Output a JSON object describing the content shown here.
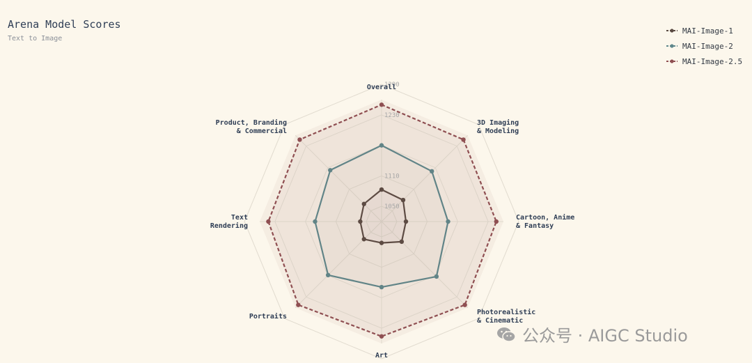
{
  "title": "Arena Model Scores",
  "subtitle": "Text to Image",
  "legend": [
    {
      "label": "MAI-Image-1",
      "color": "#5a4a42"
    },
    {
      "label": "MAI-Image-2",
      "color": "#5f878b"
    },
    {
      "label": "MAI-Image-2.5",
      "color": "#8f4f52"
    }
  ],
  "watermark": {
    "text": "公众号 · AIGC Studio",
    "icon": "wechat-icon"
  },
  "chart_data": {
    "type": "radar",
    "axes": [
      [
        "Overall"
      ],
      [
        "3D Imaging",
        "& Modeling"
      ],
      [
        "Cartoon, Anime",
        "& Fantasy"
      ],
      [
        "Photorealistic",
        "& Cinematic"
      ],
      [
        "Art"
      ],
      [
        "Portraits"
      ],
      [
        "Text",
        "Rendering"
      ],
      [
        "Product, Branding",
        "& Commercial"
      ]
    ],
    "rlim": [
      1020,
      1260
    ],
    "ticks": [
      1050,
      1110,
      1170,
      1230,
      1290
    ],
    "tick_labels_shown": [
      "1050",
      "1110",
      "",
      "1230",
      "1290"
    ],
    "grid": true,
    "legend_position": "top-right",
    "series": [
      {
        "name": "MAI-Image-1",
        "color": "#5a4a42",
        "dashed": false,
        "values": [
          1083,
          1080,
          1068,
          1076,
          1062,
          1069,
          1062,
          1069
        ]
      },
      {
        "name": "MAI-Image-2",
        "color": "#5f878b",
        "dashed": false,
        "values": [
          1170,
          1160,
          1151,
          1173,
          1149,
          1169,
          1151,
          1163
        ]
      },
      {
        "name": "MAI-Image-2.5",
        "color": "#8f4f52",
        "dashed": true,
        "values": [
          1250,
          1248,
          1246,
          1252,
          1246,
          1252,
          1243,
          1248
        ]
      }
    ]
  }
}
